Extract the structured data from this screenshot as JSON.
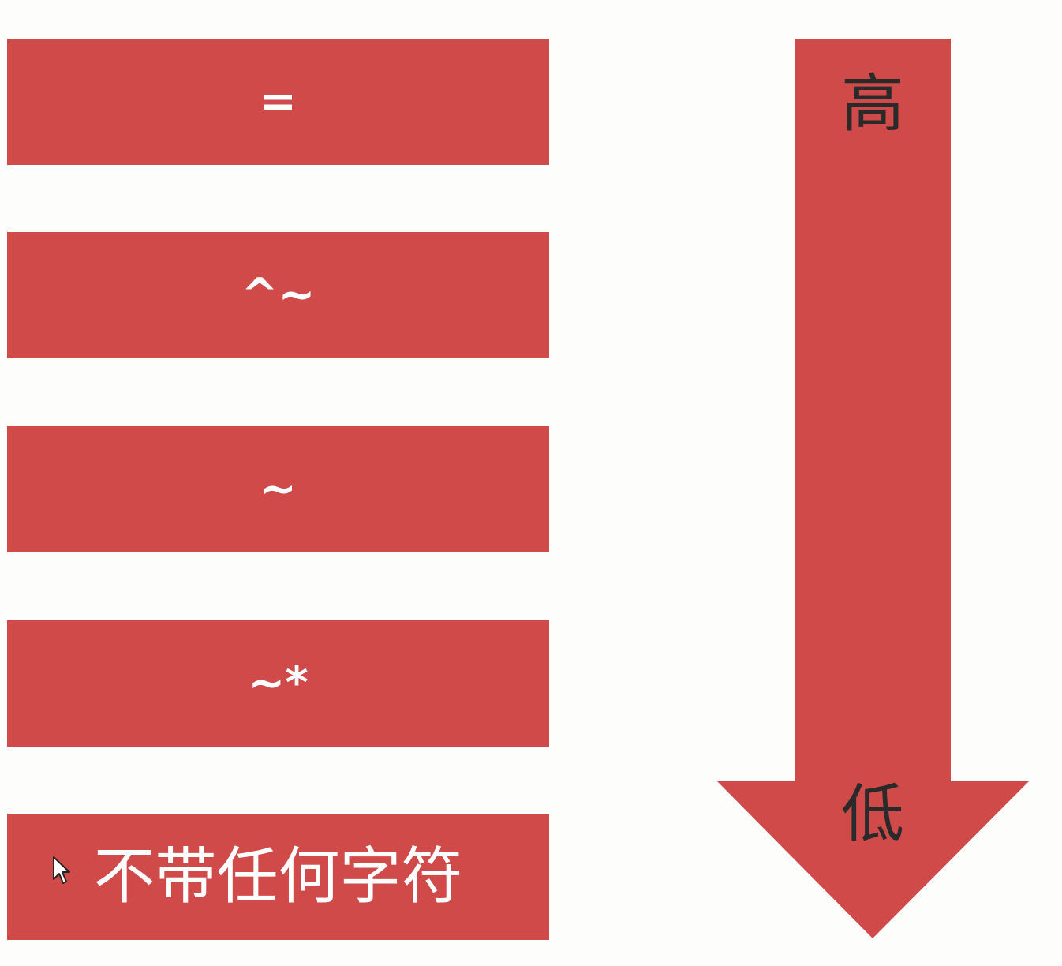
{
  "priority_items": [
    {
      "label": "="
    },
    {
      "label": "^~"
    },
    {
      "label": "~"
    },
    {
      "label": "~*"
    },
    {
      "label": "不带任何字符"
    }
  ],
  "arrow": {
    "top_label": "高",
    "bottom_label": "低"
  },
  "colors": {
    "box_fill": "#d04a4a",
    "arrow_fill": "#d04a4a",
    "box_text": "#ffffff",
    "arrow_text": "#2a2a2a",
    "background": "#fdfdfc"
  }
}
